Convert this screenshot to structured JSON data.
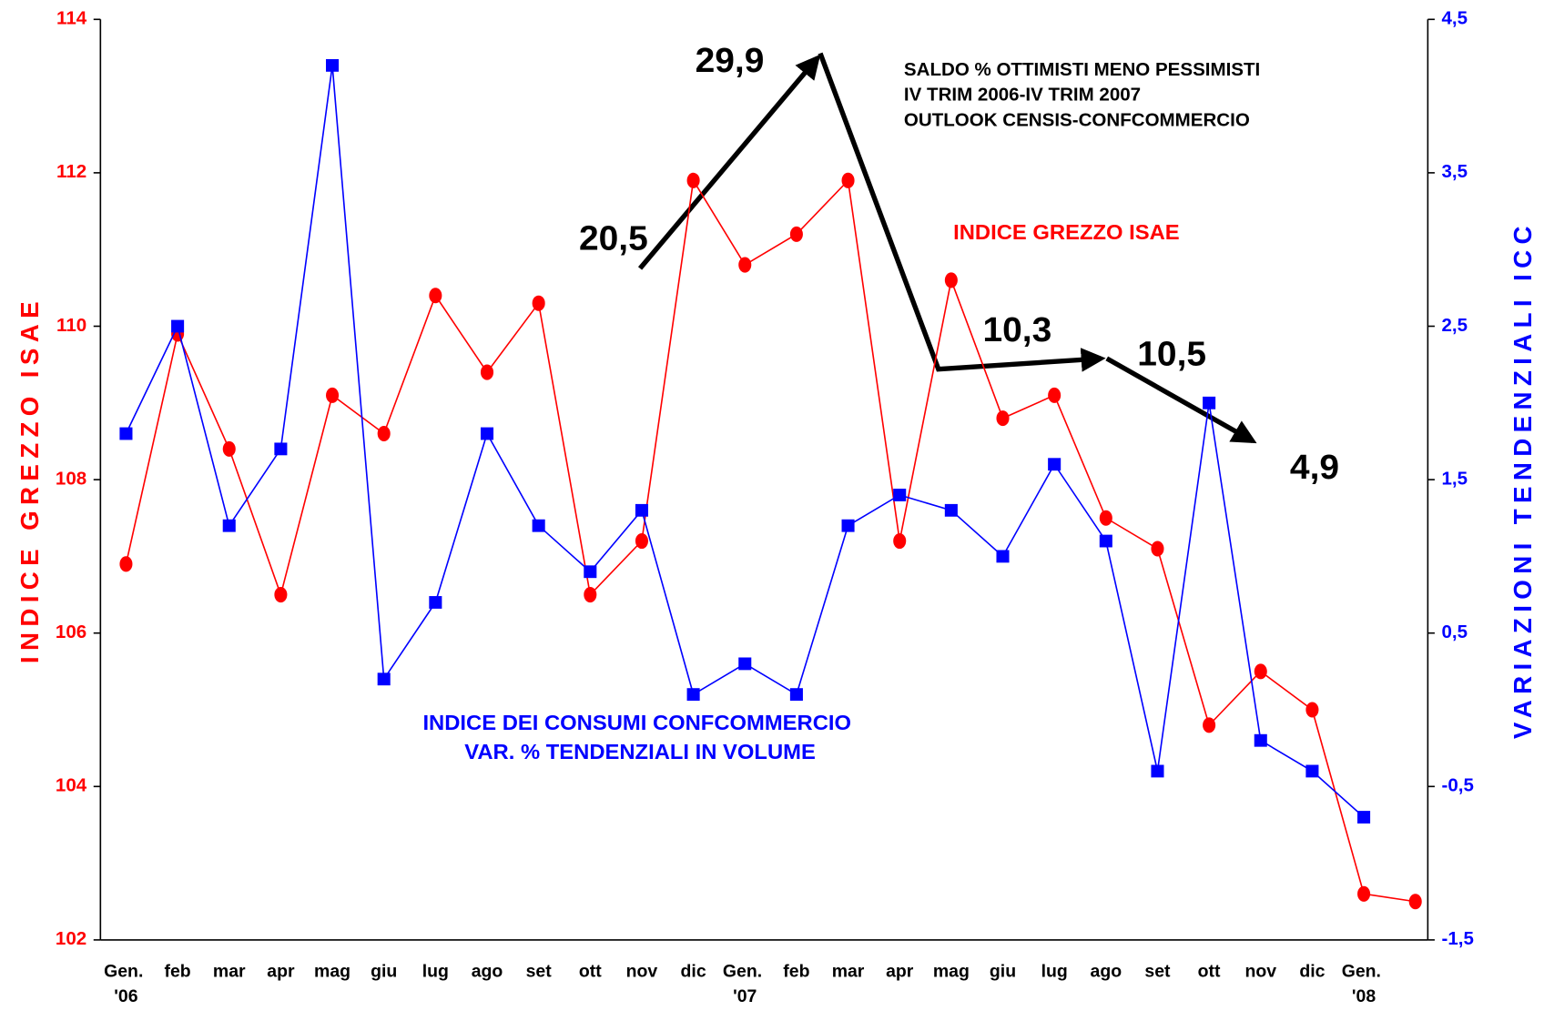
{
  "chart_data": {
    "type": "line",
    "y_axis_label": "INDICE GREZZO ISAE",
    "y2_axis_label": "VARIAZIONI TENDENZIALI ICC",
    "categories": [
      "Gen. '06",
      "feb",
      "mar",
      "apr",
      "mag",
      "giu",
      "lug",
      "ago",
      "set",
      "ott",
      "nov",
      "dic",
      "Gen. '07",
      "feb",
      "mar",
      "apr",
      "mag",
      "giu",
      "lug",
      "ago",
      "set",
      "ott",
      "nov",
      "dic",
      "Gen. '08",
      null
    ],
    "series": [
      {
        "name": "INDICE GREZZO ISAE",
        "color": "#ff0000",
        "marker": "circle",
        "values": [
          106.9,
          109.9,
          108.4,
          106.5,
          109.1,
          108.6,
          110.4,
          109.4,
          110.3,
          106.5,
          107.2,
          111.9,
          110.8,
          111.2,
          111.9,
          107.2,
          110.6,
          108.8,
          109.1,
          107.5,
          107.1,
          104.8,
          105.5,
          105.0,
          102.6,
          102.5
        ]
      },
      {
        "name": "INDICE DEI CONSUMI CONFCOMMERCIO VAR. % TENDENZIALI IN VOLUME",
        "color": "#0000ff",
        "marker": "square",
        "axis": "y2",
        "values": [
          1.8,
          2.5,
          1.2,
          1.7,
          4.2,
          0.2,
          0.7,
          1.8,
          1.2,
          0.9,
          1.3,
          0.1,
          0.3,
          0.1,
          1.2,
          1.4,
          1.3,
          1.0,
          1.6,
          1.1,
          -0.4,
          2.0,
          -0.2,
          -0.4,
          -0.7,
          null
        ]
      }
    ],
    "ylim": [
      102,
      114
    ],
    "yticks": [
      102,
      104,
      106,
      108,
      110,
      112,
      114
    ],
    "y2lim": [
      -1.5,
      4.5
    ],
    "y2ticks": [
      {
        "value": -1.5,
        "label": "-1,5"
      },
      {
        "value": -0.5,
        "label": "-0,5"
      },
      {
        "value": 0.5,
        "label": "0,5"
      },
      {
        "value": 1.5,
        "label": "1,5"
      },
      {
        "value": 2.5,
        "label": "2,5"
      },
      {
        "value": 3.5,
        "label": "3,5"
      },
      {
        "value": 4.5,
        "label": "4,5"
      }
    ],
    "annotations": {
      "box": [
        "SALDO % OTTIMISTI MENO PESSIMISTI",
        "IV TRIM 2006-IV TRIM 2007",
        "OUTLOOK CENSIS-CONFCOMMERCIO"
      ],
      "saldo": [
        "20,5",
        "29,9",
        "10,3",
        "10,5",
        "4,9"
      ]
    }
  }
}
